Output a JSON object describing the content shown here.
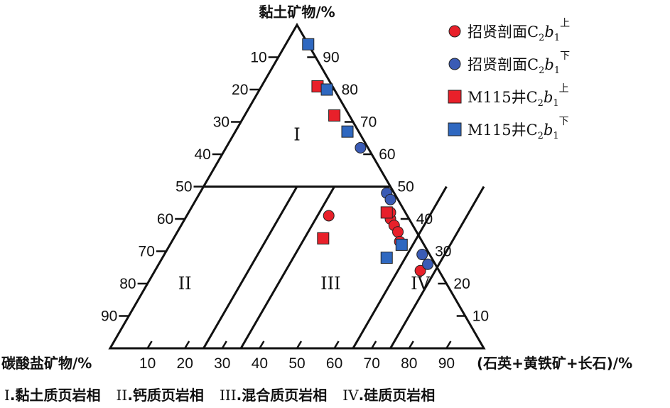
{
  "chart_data": {
    "type": "scatter",
    "subtype": "ternary",
    "axes": {
      "top": {
        "title": "黏土矿物/%"
      },
      "left": {
        "title": "碳酸盐矿物/%"
      },
      "right": {
        "title": "(石英+黄铁矿+长石)/%"
      },
      "left_ticks": [
        "10",
        "20",
        "30",
        "40",
        "50",
        "60",
        "70",
        "80",
        "90"
      ],
      "right_ticks": [
        "90",
        "80",
        "70",
        "60",
        "50",
        "40",
        "30",
        "20",
        "10"
      ],
      "bottom_ticks": [
        "10",
        "20",
        "30",
        "40",
        "50",
        "60",
        "70",
        "80",
        "90"
      ]
    },
    "regions": [
      {
        "id": "I",
        "label": "I"
      },
      {
        "id": "II",
        "label": "II"
      },
      {
        "id": "III",
        "label": "III"
      },
      {
        "id": "IV",
        "label": "IV"
      }
    ],
    "boundaries": {
      "clay_line": 50,
      "quartz_lines": [
        25,
        35,
        65,
        75
      ]
    },
    "series": [
      {
        "name_parts": {
          "base": "招贤剖面C",
          "sub": "2",
          "var": "b",
          "var_sub": "1",
          "sup": "上"
        },
        "marker": "circle",
        "color": "#e8202a",
        "points": [
          {
            "clay": 40,
            "quartz": 55,
            "carbonate": 5
          },
          {
            "clay": 42,
            "quartz": 54,
            "carbonate": 4
          },
          {
            "clay": 38,
            "quartz": 57,
            "carbonate": 5
          },
          {
            "clay": 36,
            "quartz": 59,
            "carbonate": 5
          },
          {
            "clay": 33,
            "quartz": 61,
            "carbonate": 6
          },
          {
            "clay": 24,
            "quartz": 71,
            "carbonate": 5
          },
          {
            "clay": 41,
            "quartz": 38,
            "carbonate": 21
          }
        ]
      },
      {
        "name_parts": {
          "base": "招贤剖面C",
          "sub": "2",
          "var": "b",
          "var_sub": "1",
          "sup": "下"
        },
        "marker": "circle",
        "color": "#3a5bb5",
        "points": [
          {
            "clay": 62,
            "quartz": 36,
            "carbonate": 2
          },
          {
            "clay": 48,
            "quartz": 50,
            "carbonate": 2
          },
          {
            "clay": 46,
            "quartz": 52,
            "carbonate": 2
          },
          {
            "clay": 29,
            "quartz": 69,
            "carbonate": 2
          },
          {
            "clay": 26,
            "quartz": 72,
            "carbonate": 2
          }
        ]
      },
      {
        "name_parts": {
          "base": "M115井C",
          "sub": "2",
          "var": "b",
          "var_sub": "1",
          "sup": "上"
        },
        "marker": "square",
        "color": "#e8202a",
        "points": [
          {
            "clay": 81,
            "quartz": 15,
            "carbonate": 4
          },
          {
            "clay": 72,
            "quartz": 24,
            "carbonate": 4
          },
          {
            "clay": 42,
            "quartz": 53,
            "carbonate": 5
          },
          {
            "clay": 34,
            "quartz": 40,
            "carbonate": 26
          }
        ]
      },
      {
        "name_parts": {
          "base": "M115井C",
          "sub": "2",
          "var": "b",
          "var_sub": "1",
          "sup": "下"
        },
        "marker": "square",
        "color": "#2f68c0",
        "points": [
          {
            "clay": 94,
            "quartz": 6,
            "carbonate": 0
          },
          {
            "clay": 80,
            "quartz": 18,
            "carbonate": 2
          },
          {
            "clay": 67,
            "quartz": 30,
            "carbonate": 3
          },
          {
            "clay": 32,
            "quartz": 62,
            "carbonate": 6
          },
          {
            "clay": 28,
            "quartz": 60,
            "carbonate": 12
          }
        ]
      }
    ],
    "legend_position": "top-right"
  },
  "caption": [
    {
      "numeral": "I",
      "text": ".黏土质页岩相"
    },
    {
      "numeral": "II",
      "text": ".钙质页岩相"
    },
    {
      "numeral": "III",
      "text": ".混合质页岩相"
    },
    {
      "numeral": "IV",
      "text": ".硅质页岩相"
    }
  ]
}
